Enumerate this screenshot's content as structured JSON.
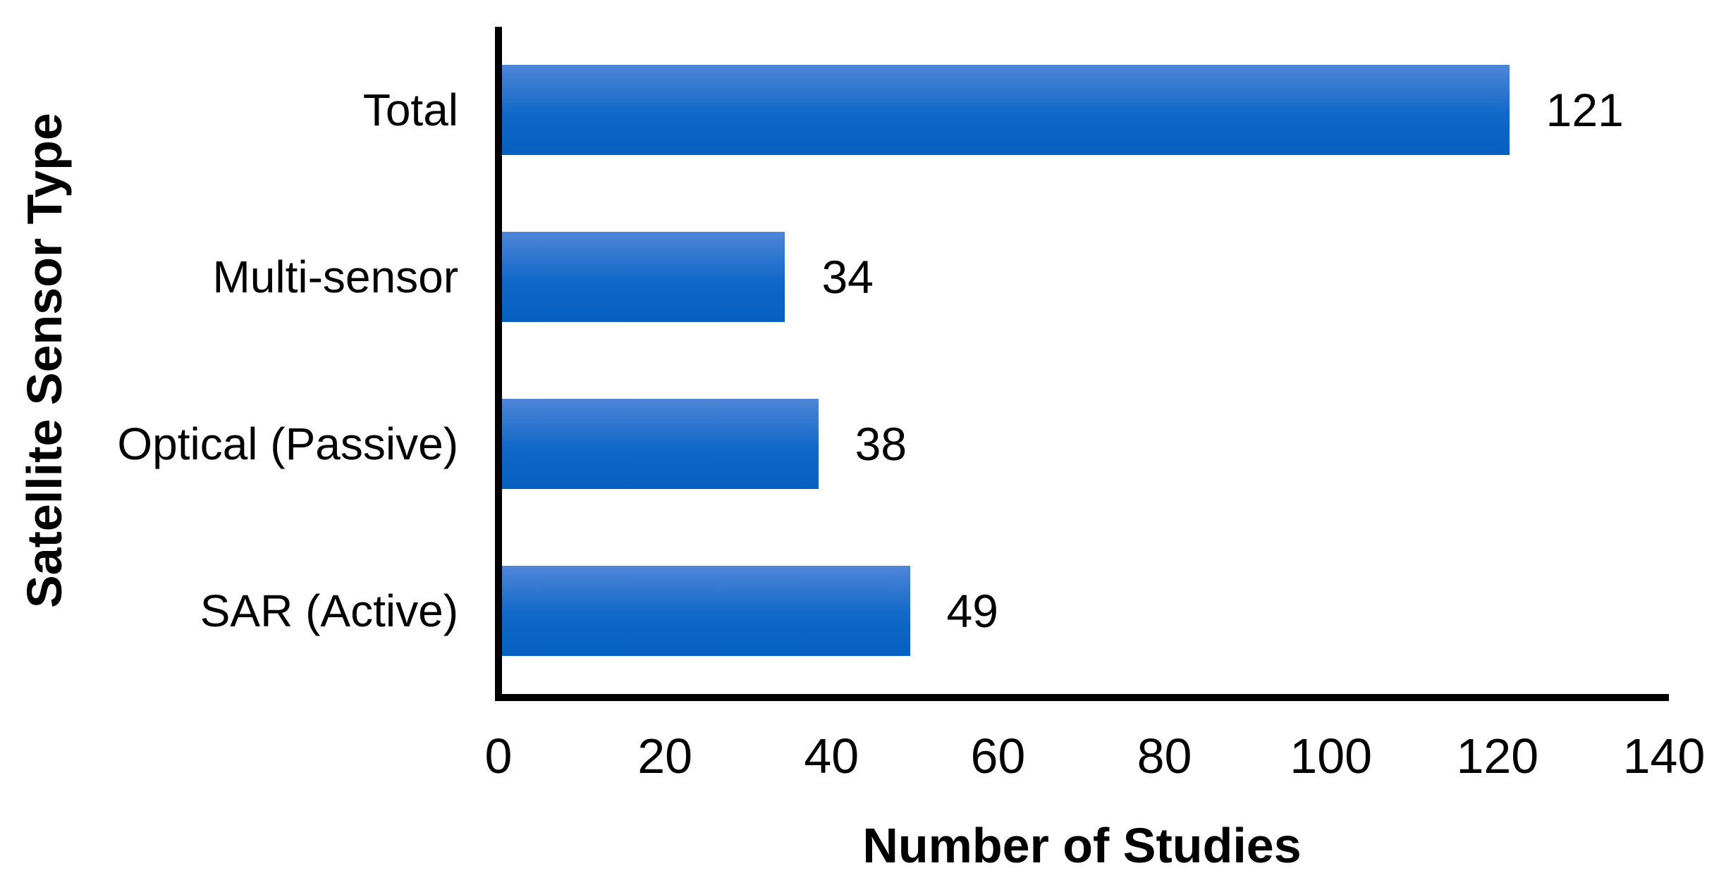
{
  "chart_data": {
    "type": "bar",
    "orientation": "horizontal",
    "title": "",
    "xlabel": "Number of Studies",
    "ylabel": "Satellite Sensor Type",
    "categories": [
      "Total",
      "Multi-sensor",
      "Optical (Passive)",
      "SAR (Active)"
    ],
    "values": [
      121,
      34,
      38,
      49
    ],
    "data_labels": [
      "121",
      "34",
      "38",
      "49"
    ],
    "xlim": [
      0,
      140
    ],
    "xticks": [
      0,
      20,
      40,
      60,
      80,
      100,
      120,
      140
    ],
    "grid": false,
    "legend": false,
    "colors": {
      "bar_gradient_top": "#4f86d8",
      "bar_gradient_mid": "#1068c8",
      "bar_gradient_bottom": "#0460c0",
      "axis_line": "#000000",
      "text": "#000000",
      "background": "#ffffff"
    }
  }
}
